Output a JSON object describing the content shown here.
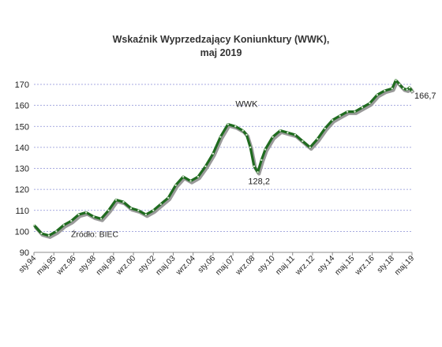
{
  "chart_data": {
    "type": "line",
    "title_line1": "Wskaźnik  Wyprzedzający  Koniunktury (WWK),",
    "title_line2": "maj 2019",
    "series": [
      {
        "name": "WWK",
        "color": "#1f6b1f",
        "shadow_color": "#9a9a9a",
        "x": [
          "1994-01",
          "1994-07",
          "1995-01",
          "1995-07",
          "1996-01",
          "1996-07",
          "1997-01",
          "1997-07",
          "1998-01",
          "1998-07",
          "1999-01",
          "1999-07",
          "2000-01",
          "2000-07",
          "2001-01",
          "2001-07",
          "2002-01",
          "2002-07",
          "2003-01",
          "2003-07",
          "2004-01",
          "2004-07",
          "2005-01",
          "2005-07",
          "2006-01",
          "2006-07",
          "2007-01",
          "2007-07",
          "2008-01",
          "2008-04",
          "2008-07",
          "2008-10",
          "2009-01",
          "2009-04",
          "2009-07",
          "2010-01",
          "2010-07",
          "2011-01",
          "2011-07",
          "2012-01",
          "2012-07",
          "2013-01",
          "2013-07",
          "2014-01",
          "2014-07",
          "2015-01",
          "2015-07",
          "2016-01",
          "2016-07",
          "2017-01",
          "2017-07",
          "2018-01",
          "2018-04",
          "2018-07",
          "2018-10",
          "2019-01",
          "2019-03",
          "2019-05"
        ],
        "values": [
          103,
          99,
          98,
          100,
          103,
          105,
          108,
          109,
          107,
          106,
          110,
          115,
          114,
          111,
          110,
          108,
          110,
          113,
          116,
          122,
          126,
          124,
          126,
          131,
          137,
          145,
          151,
          150,
          148,
          146,
          140,
          131,
          128.2,
          134,
          139,
          145,
          148,
          147,
          146,
          143,
          140,
          144,
          149,
          153,
          155,
          157,
          157,
          159,
          161,
          165,
          167,
          168,
          172,
          170,
          168,
          167.5,
          168.5,
          166.7
        ]
      }
    ],
    "y_axis": {
      "min": 90,
      "max": 170,
      "step": 10,
      "gridlines": true,
      "ticks": [
        "90",
        "100",
        "110",
        "120",
        "130",
        "140",
        "150",
        "160",
        "170"
      ]
    },
    "x_tick_labels": [
      "sty.94",
      "maj.95",
      "wrz.96",
      "sty.98",
      "maj.99",
      "wrz.00",
      "sty.02",
      "maj.03",
      "wrz.04",
      "sty.06",
      "maj.07",
      "wrz.08",
      "sty.10",
      "maj.11",
      "wrz.12",
      "sty.14",
      "maj.15",
      "wrz.16",
      "sty.18",
      "maj.19"
    ],
    "x_tick_dates": [
      "1994-01",
      "1995-05",
      "1996-09",
      "1998-01",
      "1999-05",
      "2000-09",
      "2002-01",
      "2003-05",
      "2004-09",
      "2006-01",
      "2007-05",
      "2008-09",
      "2010-01",
      "2011-05",
      "2012-09",
      "2014-01",
      "2015-05",
      "2016-09",
      "2018-01",
      "2019-05"
    ],
    "x_range": [
      "1994-01",
      "2019-05"
    ],
    "annotations": {
      "series_label": "WWK",
      "min_label": "128,2",
      "last_label": "166,7",
      "source": "Źródło: BIEC"
    }
  }
}
